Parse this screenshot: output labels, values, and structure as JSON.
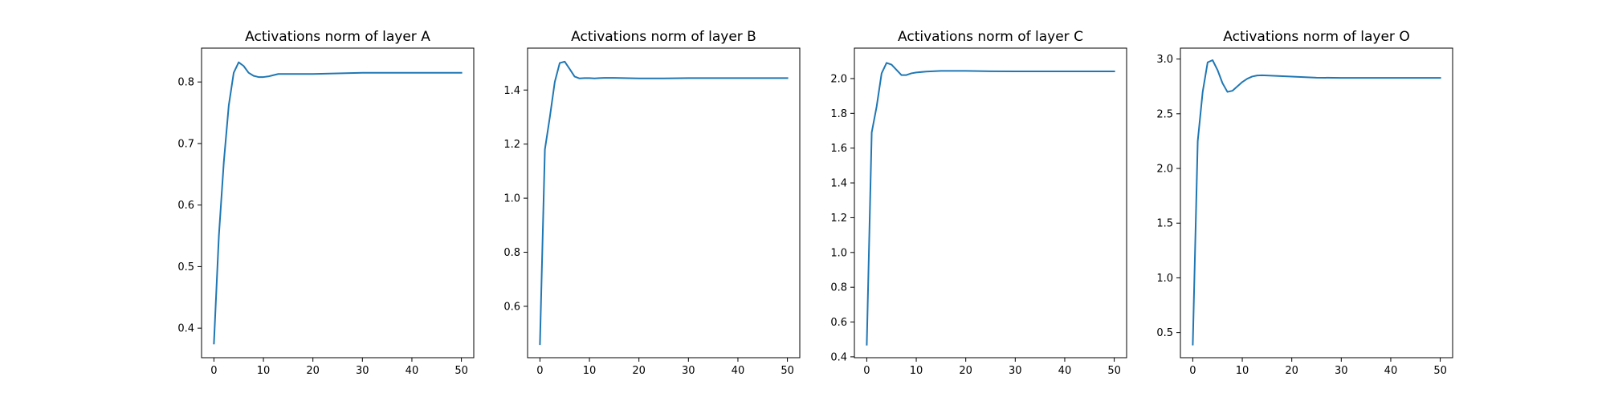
{
  "figure": {
    "background": "#ffffff",
    "line_color": "#1f77b4"
  },
  "chart_data": [
    {
      "type": "line",
      "title": "Activations norm of layer A",
      "xlabel": "",
      "ylabel": "",
      "xlim": [
        -2.5,
        52.5
      ],
      "ylim": [
        0.352,
        0.855
      ],
      "xticks": [
        0,
        10,
        20,
        30,
        40,
        50
      ],
      "xtick_labels": [
        "0",
        "10",
        "20",
        "30",
        "40",
        "50"
      ],
      "yticks": [
        0.4,
        0.5,
        0.6,
        0.7,
        0.8
      ],
      "ytick_labels": [
        "0.4",
        "0.5",
        "0.6",
        "0.7",
        "0.8"
      ],
      "grid": false,
      "series": [
        {
          "color": "#1f77b4",
          "x": [
            0,
            1,
            2,
            3,
            4,
            5,
            6,
            7,
            8,
            9,
            10,
            11,
            12,
            13,
            14,
            15,
            20,
            25,
            30,
            35,
            40,
            45,
            50
          ],
          "y": [
            0.375,
            0.55,
            0.67,
            0.762,
            0.815,
            0.832,
            0.826,
            0.815,
            0.81,
            0.808,
            0.808,
            0.809,
            0.811,
            0.813,
            0.813,
            0.813,
            0.813,
            0.814,
            0.815,
            0.815,
            0.815,
            0.815,
            0.815
          ]
        }
      ]
    },
    {
      "type": "line",
      "title": "Activations norm of layer B",
      "xlabel": "",
      "ylabel": "",
      "xlim": [
        -2.5,
        52.5
      ],
      "ylim": [
        0.41,
        1.555
      ],
      "xticks": [
        0,
        10,
        20,
        30,
        40,
        50
      ],
      "xtick_labels": [
        "0",
        "10",
        "20",
        "30",
        "40",
        "50"
      ],
      "yticks": [
        0.6,
        0.8,
        1.0,
        1.2,
        1.4
      ],
      "ytick_labels": [
        "0.6",
        "0.8",
        "1.0",
        "1.2",
        "1.4"
      ],
      "grid": false,
      "series": [
        {
          "color": "#1f77b4",
          "x": [
            0,
            1,
            2,
            3,
            4,
            5,
            6,
            7,
            8,
            9,
            10,
            11,
            12,
            13,
            14,
            15,
            20,
            25,
            30,
            35,
            40,
            45,
            50
          ],
          "y": [
            0.46,
            1.18,
            1.3,
            1.43,
            1.5,
            1.505,
            1.478,
            1.45,
            1.443,
            1.444,
            1.444,
            1.443,
            1.444,
            1.445,
            1.445,
            1.445,
            1.443,
            1.443,
            1.444,
            1.444,
            1.444,
            1.444,
            1.444
          ]
        }
      ]
    },
    {
      "type": "line",
      "title": "Activations norm of layer C",
      "xlabel": "",
      "ylabel": "",
      "xlim": [
        -2.5,
        52.5
      ],
      "ylim": [
        0.395,
        2.175
      ],
      "xticks": [
        0,
        10,
        20,
        30,
        40,
        50
      ],
      "xtick_labels": [
        "0",
        "10",
        "20",
        "30",
        "40",
        "50"
      ],
      "yticks": [
        0.4,
        0.6,
        0.8,
        1.0,
        1.2,
        1.4,
        1.6,
        1.8,
        2.0
      ],
      "ytick_labels": [
        "0.4",
        "0.6",
        "0.8",
        "1.0",
        "1.2",
        "1.4",
        "1.6",
        "1.8",
        "2.0"
      ],
      "grid": false,
      "series": [
        {
          "color": "#1f77b4",
          "x": [
            0,
            1,
            2,
            3,
            4,
            5,
            6,
            7,
            8,
            9,
            10,
            12,
            15,
            20,
            25,
            30,
            35,
            40,
            45,
            50
          ],
          "y": [
            0.47,
            1.69,
            1.84,
            2.03,
            2.09,
            2.08,
            2.05,
            2.02,
            2.02,
            2.03,
            2.035,
            2.04,
            2.044,
            2.044,
            2.042,
            2.041,
            2.041,
            2.041,
            2.041,
            2.041
          ]
        }
      ]
    },
    {
      "type": "line",
      "title": "Activations norm of layer O",
      "xlabel": "",
      "ylabel": "",
      "xlim": [
        -2.5,
        52.5
      ],
      "ylim": [
        0.27,
        3.1
      ],
      "xticks": [
        0,
        10,
        20,
        30,
        40,
        50
      ],
      "xtick_labels": [
        "0",
        "10",
        "20",
        "30",
        "40",
        "50"
      ],
      "yticks": [
        0.5,
        1.0,
        1.5,
        2.0,
        2.5,
        3.0
      ],
      "ytick_labels": [
        "0.5",
        "1.0",
        "1.5",
        "2.0",
        "2.5",
        "3.0"
      ],
      "grid": false,
      "series": [
        {
          "color": "#1f77b4",
          "x": [
            0,
            1,
            2,
            3,
            4,
            5,
            6,
            7,
            8,
            9,
            10,
            11,
            12,
            13,
            14,
            15,
            20,
            25,
            30,
            35,
            40,
            45,
            50
          ],
          "y": [
            0.39,
            2.25,
            2.7,
            2.97,
            2.99,
            2.9,
            2.78,
            2.7,
            2.71,
            2.75,
            2.79,
            2.82,
            2.84,
            2.85,
            2.852,
            2.85,
            2.84,
            2.83,
            2.828,
            2.828,
            2.828,
            2.828,
            2.828
          ]
        }
      ]
    }
  ]
}
